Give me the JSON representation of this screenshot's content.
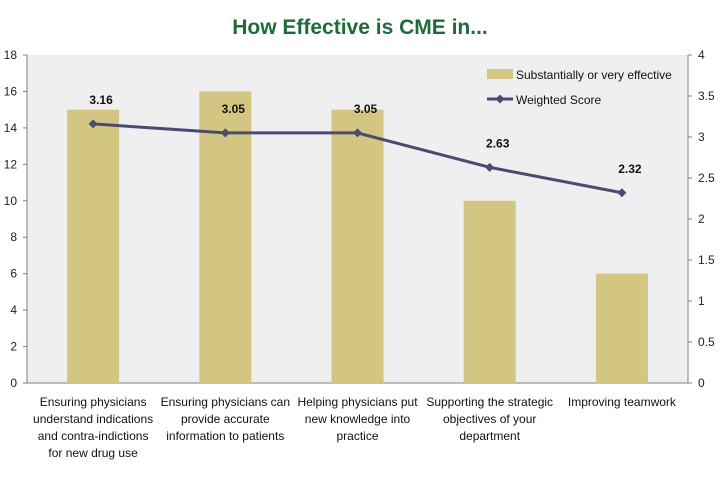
{
  "chart_data": {
    "type": "bar",
    "title": "How Effective is CME in...",
    "categories": [
      [
        "Ensuring physicians",
        "understand indications",
        "and contra-indictions",
        "for new drug use"
      ],
      [
        "Ensuring physicians can",
        "provide accurate",
        "information to patients"
      ],
      [
        "Helping physicians put",
        "new knowledge into",
        "practice"
      ],
      [
        "Supporting the strategic",
        "objectives of your",
        "department"
      ],
      [
        "Improving teamwork"
      ]
    ],
    "series": [
      {
        "name": "Substantially or very effective",
        "type": "bar",
        "axis": "left",
        "values": [
          15,
          16,
          15,
          10,
          6
        ]
      },
      {
        "name": "Weighted Score",
        "type": "line",
        "axis": "right",
        "values": [
          3.16,
          3.05,
          3.05,
          2.63,
          2.32
        ],
        "labels": [
          "3.16",
          "3.05",
          "3.05",
          "2.63",
          "2.32"
        ]
      }
    ],
    "y_left": {
      "min": 0,
      "max": 18,
      "step": 2,
      "ticks": [
        "0",
        "2",
        "4",
        "6",
        "8",
        "10",
        "12",
        "14",
        "16",
        "18"
      ]
    },
    "y_right": {
      "min": 0,
      "max": 4,
      "step": 0.5,
      "ticks": [
        "0",
        "0.5",
        "1",
        "1.5",
        "2",
        "2.5",
        "3",
        "3.5",
        "4"
      ]
    },
    "legend_position": "top-right",
    "grid": false,
    "colors": {
      "title": "#1e6b3a",
      "bar": "#d3c683",
      "line": "#4b4a72",
      "plot_bg": "#efefef",
      "axis": "#808080"
    }
  }
}
